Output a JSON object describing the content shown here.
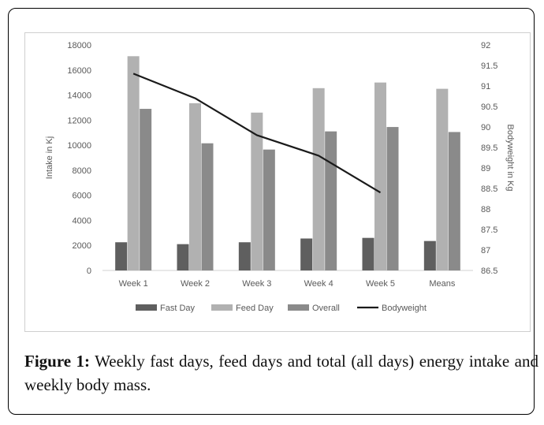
{
  "chart_data": {
    "type": "bar",
    "categories": [
      "Week 1",
      "Week 2",
      "Week 3",
      "Week 4",
      "Week 5",
      "Means"
    ],
    "series": [
      {
        "name": "Fast Day",
        "kind": "bar",
        "color": "#5f5f5f",
        "values": [
          2250,
          2100,
          2250,
          2550,
          2600,
          2350
        ]
      },
      {
        "name": "Feed Day",
        "kind": "bar",
        "color": "#b1b1b1",
        "values": [
          17100,
          13350,
          12600,
          14550,
          15000,
          14500
        ]
      },
      {
        "name": "Overall",
        "kind": "bar",
        "color": "#8a8a8a",
        "values": [
          12900,
          10150,
          9650,
          11100,
          11450,
          11050
        ]
      },
      {
        "name": "Bodyweight",
        "kind": "line",
        "axis": "right",
        "color": "#1a1a1a",
        "values": [
          91.3,
          90.7,
          89.8,
          89.3,
          88.4,
          null
        ]
      }
    ],
    "ylabel": "Intake in Kj",
    "y2label": "Bodyweight in Kg",
    "ylim": [
      0,
      18000
    ],
    "yticks": [
      "0",
      "2000",
      "4000",
      "6000",
      "8000",
      "10000",
      "12000",
      "14000",
      "16000",
      "18000"
    ],
    "y2lim": [
      86.5,
      92
    ],
    "y2ticks": [
      "86.5",
      "87",
      "87.5",
      "88",
      "88.5",
      "89",
      "89.5",
      "90",
      "90.5",
      "91",
      "91.5",
      "92"
    ],
    "legend_position": "bottom",
    "grid": false
  },
  "caption": {
    "label": "Figure 1:",
    "text": "Weekly fast days, feed days and total (all days) energy intake and weekly body mass."
  }
}
